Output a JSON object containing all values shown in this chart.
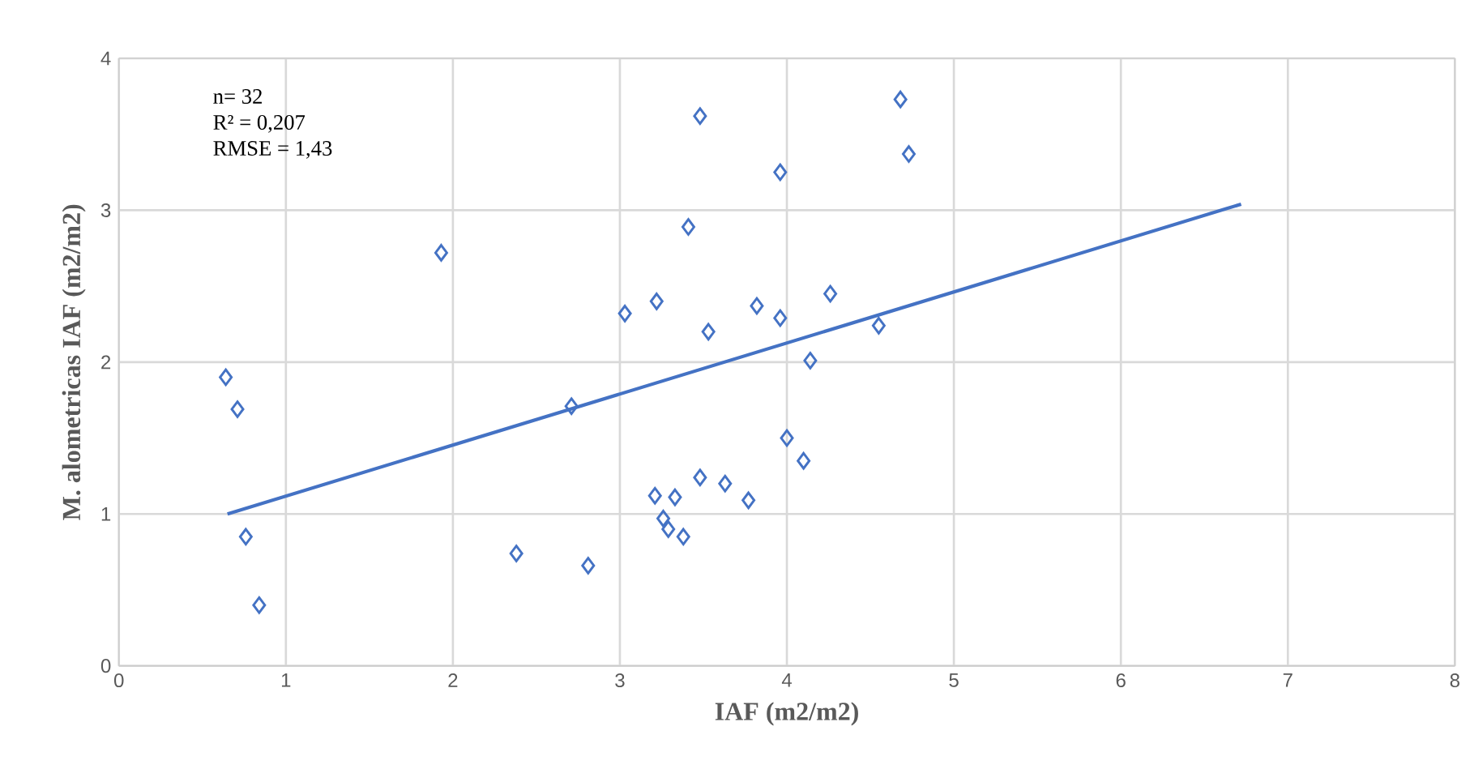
{
  "chart_data": {
    "type": "scatter",
    "xlabel": "IAF (m2/m2)",
    "ylabel": "M. alometricas IAF (m2/m2)",
    "annotations": [
      "n= 32",
      "R² = 0,207",
      "RMSE = 1,43"
    ],
    "xlim": [
      0,
      8
    ],
    "ylim": [
      0,
      4
    ],
    "xticks": [
      0,
      1,
      2,
      3,
      4,
      5,
      6,
      7,
      8
    ],
    "yticks": [
      0,
      1,
      2,
      3,
      4
    ],
    "grid": true,
    "series": [
      {
        "marker": "diamond",
        "color": "#4472c4",
        "x": [
          0.64,
          0.71,
          0.76,
          0.84,
          1.93,
          2.38,
          2.81,
          2.71,
          3.03,
          3.22,
          3.48,
          3.41,
          3.53,
          3.82,
          3.96,
          3.96,
          4.26,
          4.55,
          4.14,
          4.68,
          4.73,
          4.0,
          4.1,
          3.48,
          3.63,
          3.77,
          3.21,
          3.33,
          3.26,
          3.29,
          3.38
        ],
        "values": [
          1.9,
          1.69,
          0.85,
          0.4,
          2.72,
          0.74,
          0.66,
          1.71,
          2.32,
          2.4,
          3.62,
          2.89,
          2.2,
          2.37,
          2.29,
          3.25,
          2.45,
          2.24,
          2.01,
          3.73,
          3.37,
          1.5,
          1.35,
          1.24,
          1.2,
          1.09,
          1.12,
          1.11,
          0.97,
          0.9,
          0.85
        ]
      },
      {
        "type": "line",
        "color": "#4472c4",
        "x": [
          0.65,
          6.72
        ],
        "values": [
          1.0,
          3.04
        ]
      }
    ]
  }
}
